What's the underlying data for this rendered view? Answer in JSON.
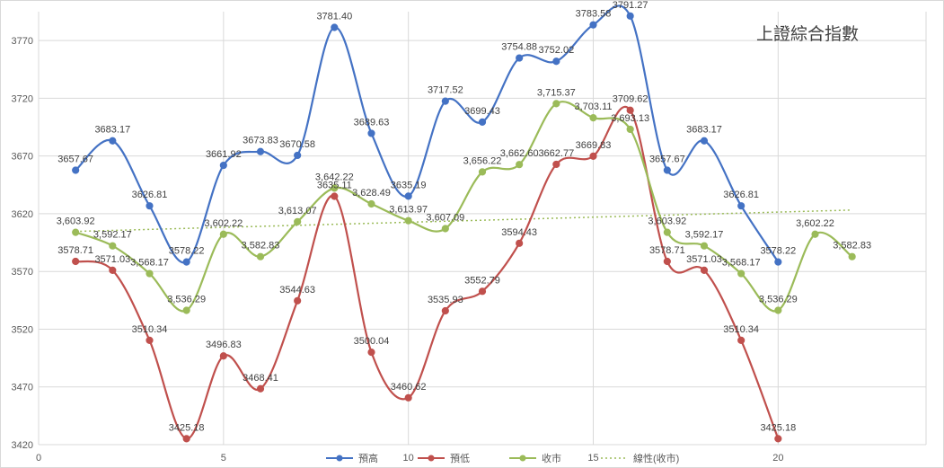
{
  "chart_data": {
    "type": "line",
    "title": "上證綜合指數",
    "x_ticks": [
      "0",
      "5",
      "10",
      "15",
      "20"
    ],
    "y_ticks": [
      "3420",
      "3470",
      "3520",
      "3570",
      "3620",
      "3670",
      "3720",
      "3770"
    ],
    "xlim": [
      0,
      24
    ],
    "ylim": [
      3420,
      3795
    ],
    "grid": true,
    "legend_position": "bottom",
    "series": [
      {
        "name": "預高",
        "color": "#4472c4",
        "x": [
          1,
          2,
          3,
          4,
          5,
          6,
          7,
          8,
          9,
          10,
          11,
          12,
          13,
          14,
          15,
          16,
          17,
          18,
          19,
          20
        ],
        "values": [
          3657.67,
          3683.17,
          3626.81,
          3578.22,
          3661.92,
          3673.83,
          3670.58,
          3781.4,
          3689.63,
          3635.19,
          3717.52,
          3699.43,
          3754.88,
          3752.02,
          3783.58,
          3791.27,
          3657.67,
          3683.17,
          3626.81,
          3578.22
        ],
        "labels": [
          "3657.67",
          "3683.17",
          "3626.81",
          "3578.22",
          "3661.92",
          "3673.83",
          "3670.58",
          "3781.40",
          "3689.63",
          "3635.19",
          "3717.52",
          "3699.43",
          "3754.88",
          "3752.02",
          "3783.58",
          "3791.27",
          "3657.67",
          "3683.17",
          "3626.81",
          "3578.22"
        ]
      },
      {
        "name": "預低",
        "color": "#c0504d",
        "x": [
          1,
          2,
          3,
          4,
          5,
          6,
          7,
          8,
          9,
          10,
          11,
          12,
          13,
          14,
          15,
          16,
          17,
          18,
          19,
          20
        ],
        "values": [
          3578.71,
          3571.03,
          3510.34,
          3425.18,
          3496.83,
          3468.41,
          3544.63,
          3635.11,
          3500.04,
          3460.62,
          3535.93,
          3552.79,
          3594.43,
          3662.77,
          3669.83,
          3709.62,
          3578.71,
          3571.03,
          3510.34,
          3425.18
        ],
        "labels": [
          "3578.71",
          "3571.03",
          "3510.34",
          "3425.18",
          "3496.83",
          "3468.41",
          "3544.63",
          "3635.11",
          "3500.04",
          "3460.62",
          "3535.93",
          "3552.79",
          "3594.43",
          "3662.77",
          "3669.83",
          "3709.62",
          "3578.71",
          "3571.03",
          "3510.34",
          "3425.18"
        ]
      },
      {
        "name": "收市",
        "color": "#9bbb59",
        "x": [
          1,
          2,
          3,
          4,
          5,
          6,
          7,
          8,
          9,
          10,
          11,
          12,
          13,
          14,
          15,
          16,
          17,
          18,
          19,
          20,
          21,
          22
        ],
        "values": [
          3603.92,
          3592.17,
          3568.17,
          3536.29,
          3602.22,
          3582.83,
          3613.07,
          3642.22,
          3628.49,
          3613.97,
          3607.09,
          3656.22,
          3662.6,
          3715.37,
          3703.11,
          3693.13,
          3603.92,
          3592.17,
          3568.17,
          3536.29,
          3602.22,
          3582.83
        ],
        "labels": [
          "3,603.92",
          "3,592.17",
          "3,568.17",
          "3,536.29",
          "3,602.22",
          "3,582.83",
          "3,613.07",
          "3,642.22",
          "3,628.49",
          "3,613.97",
          "3,607.09",
          "3,656.22",
          "3,662.60",
          "3,715.37",
          "3,703.11",
          "3,693.13",
          "3,603.92",
          "3,592.17",
          "3,568.17",
          "3,536.29",
          "3,602.22",
          "3,582.83"
        ]
      }
    ],
    "trendline": {
      "name": "線性(收市)",
      "color": "#9bbb59",
      "of_series": "收市",
      "type": "linear"
    }
  }
}
